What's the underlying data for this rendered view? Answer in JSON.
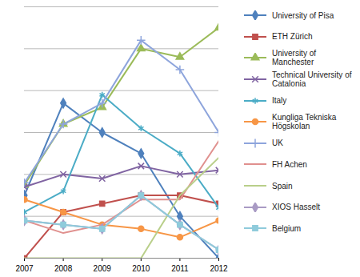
{
  "chart_data": {
    "type": "line",
    "x": [
      2007,
      2008,
      2009,
      2010,
      2011,
      2012
    ],
    "xlim": [
      2007,
      2012
    ],
    "xticks": [
      2007,
      2008,
      2009,
      2010,
      2011,
      2012
    ],
    "ylim": [
      0,
      6
    ],
    "yticks": [
      0,
      1,
      2,
      3,
      4,
      5,
      6
    ],
    "grid": true,
    "tick_labels": "x",
    "legend": "right",
    "series": [
      {
        "name": "University of Pisa",
        "color": "#4F81BD",
        "marker": "diamond",
        "values": [
          1.5,
          3.7,
          3.0,
          2.5,
          1.0,
          0
        ]
      },
      {
        "name": "ETH Zürich",
        "color": "#C0504D",
        "marker": "square",
        "values": [
          0,
          1.1,
          1.3,
          1.5,
          1.5,
          1.3
        ]
      },
      {
        "name": "University of Manchester",
        "color": "#9BBB59",
        "marker": "triangle",
        "values": [
          1.75,
          3.2,
          3.6,
          5.0,
          4.8,
          5.5
        ]
      },
      {
        "name": "Technical University of Catalonia",
        "color": "#8064A2",
        "marker": "times",
        "values": [
          1.7,
          2.0,
          1.9,
          2.2,
          2.0,
          2.1
        ]
      },
      {
        "name": "Italy",
        "color": "#4BACC6",
        "marker": "asterisk",
        "values": [
          1.1,
          1.6,
          3.9,
          3.1,
          2.5,
          1.2
        ]
      },
      {
        "name": "Kungliga Tekniska Högskolan",
        "color": "#F79646",
        "marker": "circle",
        "values": [
          1.4,
          1.1,
          0.8,
          0.7,
          0.5,
          0.9
        ]
      },
      {
        "name": "UK",
        "color": "#8EA5DC",
        "marker": "plus",
        "values": [
          1.8,
          3.2,
          3.7,
          5.2,
          4.5,
          3.0
        ]
      },
      {
        "name": "FH Achen",
        "color": "#E0908E",
        "marker": "none",
        "values": [
          0.9,
          0.6,
          0.8,
          1.4,
          1.4,
          2.8
        ]
      },
      {
        "name": "Spain",
        "color": "#B9CF8A",
        "marker": "none",
        "values": [
          0,
          0,
          0,
          0,
          1.5,
          2.4
        ]
      },
      {
        "name": "XIOS Hasselt",
        "color": "#A99BC4",
        "marker": "diamond",
        "values": [
          0.9,
          0.8,
          0.7,
          1.5,
          0.8,
          0.2
        ]
      },
      {
        "name": "Belgium",
        "color": "#8FCBDB",
        "marker": "square",
        "values": [
          0.9,
          0.8,
          0.7,
          1.5,
          0.8,
          0.2
        ]
      }
    ]
  }
}
